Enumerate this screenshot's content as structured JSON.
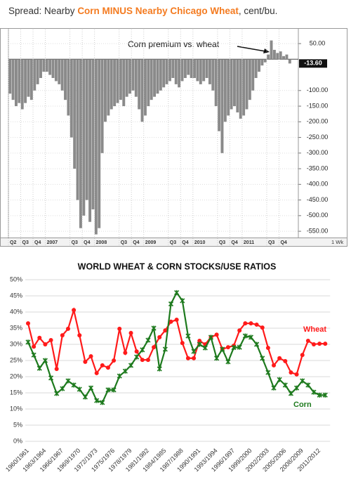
{
  "chart_data": [
    {
      "type": "bar",
      "title_parts": [
        "Spread: Nearby ",
        "Corn MINUS Nearby Chicago Wheat",
        ", cent/bu."
      ],
      "title_colors": [
        "#333333",
        "#f47b20",
        "#333333"
      ],
      "annotation": "Corn premium vs. wheat",
      "interval_label": "1 Wk",
      "color": "#8a8a8a",
      "grid": true,
      "ylim": [
        -570,
        95
      ],
      "yticks": [
        {
          "value": 50,
          "label": "50.00"
        },
        {
          "value": -100,
          "label": "-100.00"
        },
        {
          "value": -150,
          "label": "-150.00"
        },
        {
          "value": -200,
          "label": "-200.00"
        },
        {
          "value": -250,
          "label": "-250.00"
        },
        {
          "value": -300,
          "label": "-300.00"
        },
        {
          "value": -350,
          "label": "-350.00"
        },
        {
          "value": -400,
          "label": "-400.00"
        },
        {
          "value": -450,
          "label": "-450.00"
        },
        {
          "value": -500,
          "label": "-500.00"
        },
        {
          "value": -550,
          "label": "-550.00"
        }
      ],
      "categories": [
        "Q2",
        null,
        null,
        null,
        "Q3",
        null,
        null,
        null,
        "Q4",
        null,
        null,
        null,
        "2007",
        null,
        null,
        null,
        null,
        null,
        null,
        null,
        "Q3",
        null,
        null,
        null,
        "Q4",
        null,
        null,
        null,
        "2008",
        null,
        null,
        null,
        null,
        null,
        null,
        null,
        "Q3",
        null,
        null,
        null,
        "Q4",
        null,
        null,
        null,
        "2009",
        null,
        null,
        null,
        null,
        null,
        null,
        null,
        "Q3",
        null,
        null,
        null,
        "Q4",
        null,
        null,
        null,
        "2010",
        null,
        null,
        null,
        null,
        null,
        null,
        null,
        "Q3",
        null,
        null,
        null,
        "Q4",
        null,
        null,
        null,
        "2011",
        null,
        null,
        null,
        null,
        null,
        null,
        null,
        "Q3",
        null,
        null,
        null,
        "Q4",
        null,
        null,
        null
      ],
      "values": [
        -110,
        -130,
        -150,
        -140,
        -160,
        -140,
        -120,
        -130,
        -100,
        -80,
        -60,
        -40,
        -40,
        -50,
        -60,
        -70,
        -80,
        -100,
        -130,
        -180,
        -250,
        -350,
        -450,
        -540,
        -500,
        -450,
        -520,
        -480,
        -560,
        -540,
        -300,
        -200,
        -180,
        -160,
        -150,
        -140,
        -130,
        -150,
        -120,
        -110,
        -100,
        -120,
        -160,
        -200,
        -180,
        -150,
        -130,
        -120,
        -110,
        -100,
        -90,
        -80,
        -70,
        -60,
        -80,
        -90,
        -70,
        -60,
        -50,
        -60,
        -60,
        -70,
        -80,
        -70,
        -60,
        -80,
        -100,
        -150,
        -230,
        -300,
        -200,
        -180,
        -160,
        -150,
        -170,
        -190,
        -180,
        -160,
        -130,
        -100,
        -60,
        -40,
        -20,
        -10,
        15,
        60,
        30,
        20,
        25,
        10,
        15,
        -13.6
      ],
      "value_labels": [
        null,
        null,
        null,
        null,
        null,
        null,
        null,
        null,
        null,
        null,
        null,
        null,
        null,
        null,
        null,
        null,
        null,
        null,
        null,
        null,
        null,
        null,
        null,
        null,
        null,
        null,
        null,
        null,
        null,
        null,
        null,
        null,
        null,
        null,
        null,
        null,
        null,
        null,
        null,
        null,
        null,
        null,
        null,
        null,
        null,
        null,
        null,
        null,
        null,
        null,
        null,
        null,
        null,
        null,
        null,
        null,
        null,
        null,
        null,
        null,
        null,
        null,
        null,
        null,
        null,
        null,
        null,
        null,
        null,
        null,
        null,
        null,
        null,
        null,
        null,
        null,
        null,
        null,
        null,
        null,
        null,
        null,
        null,
        null,
        null,
        null,
        null,
        null,
        null,
        null,
        null,
        "-13.60"
      ]
    },
    {
      "type": "line",
      "title": "WORLD WHEAT & CORN STOCKS/USE RATIOS",
      "grid": true,
      "ylim": [
        0,
        50
      ],
      "yticks": [
        {
          "value": 0,
          "label": "0%"
        },
        {
          "value": 5,
          "label": "5%"
        },
        {
          "value": 10,
          "label": "10%"
        },
        {
          "value": 15,
          "label": "15%"
        },
        {
          "value": 20,
          "label": "20%"
        },
        {
          "value": 25,
          "label": "25%"
        },
        {
          "value": 30,
          "label": "30%"
        },
        {
          "value": 35,
          "label": "35%"
        },
        {
          "value": 40,
          "label": "40%"
        },
        {
          "value": 45,
          "label": "45%"
        },
        {
          "value": 50,
          "label": "50%"
        }
      ],
      "categories": [
        "1960/1961",
        null,
        null,
        "1963/1964",
        null,
        null,
        "1966/1967",
        null,
        null,
        "1969/1970",
        null,
        null,
        "1972/1973",
        null,
        null,
        "1975/1976",
        null,
        null,
        "1978/1979",
        null,
        null,
        "1981/1982",
        null,
        null,
        "1984/1985",
        null,
        null,
        "1987/1988",
        null,
        null,
        "1990/1991",
        null,
        null,
        "1993/1994",
        null,
        null,
        "1996/1997",
        null,
        null,
        "1999/2000",
        null,
        null,
        "2002/2003",
        null,
        null,
        "2005/2006",
        null,
        null,
        "2008/2009",
        null,
        null,
        "2011/2012",
        null
      ],
      "series": [
        {
          "name": "Wheat",
          "color": "#ff1a1a",
          "marker": "circle",
          "values": [
            36.5,
            29.3,
            32,
            30,
            31.3,
            22.4,
            32.8,
            34.8,
            40.6,
            32.8,
            24.6,
            26.3,
            21.1,
            23.5,
            22.8,
            25,
            34.8,
            27.4,
            33.5,
            27.8,
            25.2,
            25.2,
            29.1,
            32.2,
            34.3,
            37,
            37.6,
            30.4,
            25.7,
            25.7,
            31.1,
            30,
            32.2,
            33,
            28.5,
            29.1,
            29.6,
            34.3,
            36.5,
            36.5,
            36.1,
            35.2,
            28.9,
            23.5,
            25.7,
            24.8,
            21.3,
            20.7,
            26.7,
            31.1,
            30,
            30.2,
            30.2
          ]
        },
        {
          "name": "Corn",
          "color": "#1e7a1e",
          "marker": "star",
          "values": [
            30.7,
            26.7,
            22.6,
            25,
            19.6,
            14.8,
            16.3,
            18.7,
            17.4,
            16.1,
            13.7,
            16.5,
            12.6,
            12,
            15.9,
            15.9,
            20.2,
            21.7,
            23.5,
            26.1,
            28.3,
            31.3,
            35,
            22.4,
            28.5,
            42.5,
            46,
            43.5,
            32.6,
            27.8,
            30,
            28.9,
            32.2,
            25.7,
            28.5,
            24.6,
            29,
            29.1,
            32.6,
            32.2,
            30,
            25.7,
            21.3,
            16.5,
            19.1,
            17.4,
            14.8,
            16.5,
            18.7,
            17.4,
            15.2,
            14.3,
            14.3
          ]
        }
      ]
    }
  ]
}
